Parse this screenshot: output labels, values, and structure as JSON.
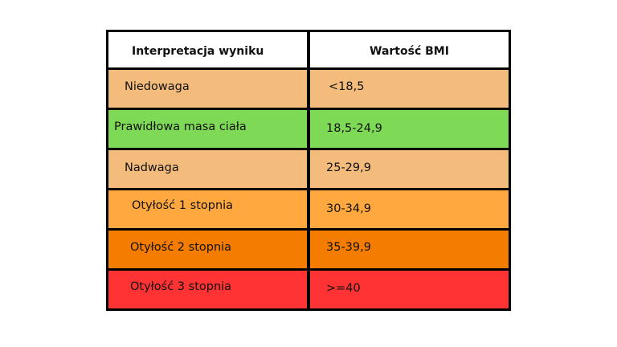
{
  "header": {
    "interpretation": "Interpretacja wyniku",
    "bmi_value": "Wartość BMI"
  },
  "rows": [
    {
      "label": "Niedowaga",
      "value": "<18,5",
      "color": "#f4bc7c"
    },
    {
      "label": "Prawidłowa masa ciała",
      "value": "18,5-24,9",
      "color": "#7ed957"
    },
    {
      "label": "Nadwaga",
      "value": "25-29,9",
      "color": "#f4bc7c"
    },
    {
      "label": "Otyłość 1 stopnia",
      "value": "30-34,9",
      "color": "#ffa83f"
    },
    {
      "label": "Otyłość 2 stopnia",
      "value": "35-39,9",
      "color": "#f47c00"
    },
    {
      "label": "Otyłość 3 stopnia",
      "value": ">=40",
      "color": "#ff3333"
    }
  ]
}
